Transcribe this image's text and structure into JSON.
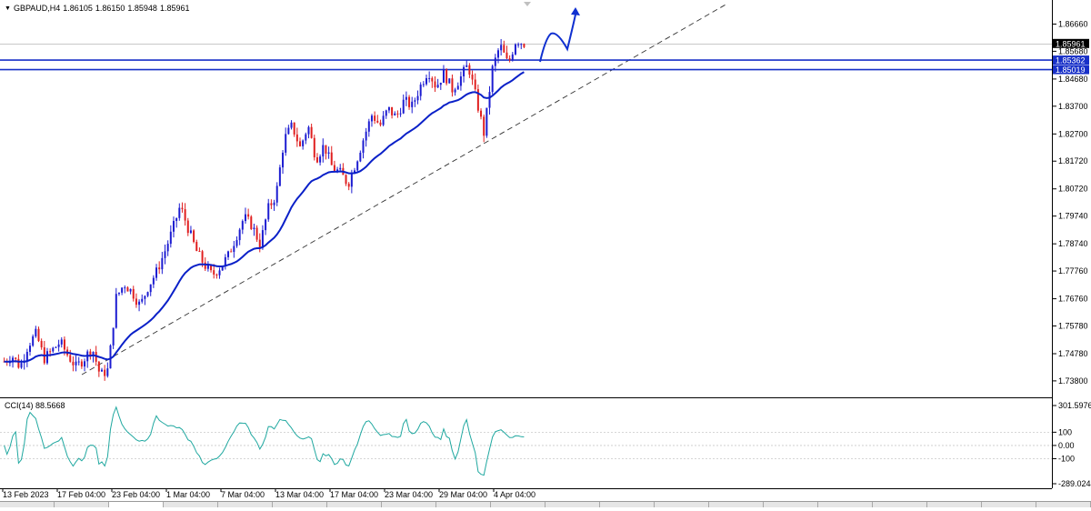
{
  "header": {
    "collapse_arrow": "▼",
    "symbol": "GBPAUD,H4",
    "open": "1.86105",
    "high": "1.86150",
    "low": "1.85948",
    "close": "1.85961"
  },
  "price_axis": {
    "ticks": [
      "1.86660",
      "1.85680",
      "1.84680",
      "1.83700",
      "1.82700",
      "1.81720",
      "1.80720",
      "1.79740",
      "1.78740",
      "1.77760",
      "1.76760",
      "1.75780",
      "1.74780",
      "1.73800"
    ],
    "ask_tag": "1.85961",
    "level_tags": [
      "1.85362",
      "1.85019"
    ]
  },
  "time_axis": {
    "labels": [
      "13 Feb 2023",
      "17 Feb 04:00",
      "23 Feb 04:00",
      "1 Mar 04:00",
      "7 Mar 04:00",
      "13 Mar 04:00",
      "17 Mar 04:00",
      "23 Mar 04:00",
      "29 Mar 04:00",
      "4 Apr 04:00"
    ]
  },
  "indicator": {
    "label": "CCI(14) 88.5668",
    "ticks": [
      "301.5976",
      "100",
      "0.00",
      "-100",
      "-289.0244"
    ]
  },
  "colors": {
    "bull": "#1c1cd1",
    "bear": "#e01f1f",
    "ma": "#0a20c8",
    "levels": "#1830c8",
    "cci": "#20a8a0",
    "trend": "#333333"
  },
  "chart_data": {
    "type": "candlestick",
    "symbol": "GBPAUD",
    "timeframe": "H4",
    "ylim": [
      1.736,
      1.872
    ],
    "resistance_levels": [
      1.85362,
      1.85019
    ],
    "close_path": [
      1.745,
      1.747,
      1.743,
      1.751,
      1.755,
      1.746,
      1.749,
      1.752,
      1.747,
      1.743,
      1.746,
      1.75,
      1.74,
      1.742,
      1.768,
      1.773,
      1.77,
      1.765,
      1.772,
      1.777,
      1.784,
      1.792,
      1.801,
      1.793,
      1.785,
      1.78,
      1.776,
      1.779,
      1.783,
      1.79,
      1.797,
      1.794,
      1.787,
      1.8,
      1.805,
      1.825,
      1.83,
      1.822,
      1.83,
      1.818,
      1.823,
      1.815,
      1.813,
      1.809,
      1.817,
      1.826,
      1.834,
      1.83,
      1.836,
      1.833,
      1.839,
      1.837,
      1.844,
      1.85,
      1.844,
      1.849,
      1.843,
      1.847,
      1.852,
      1.84,
      1.827,
      1.85,
      1.859,
      1.852,
      1.861,
      1.8596
    ]
  }
}
